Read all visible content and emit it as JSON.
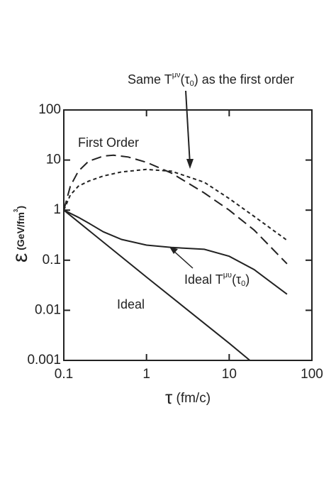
{
  "chart_data": {
    "type": "line",
    "xscale": "log",
    "yscale": "log",
    "xlim": [
      0.1,
      100
    ],
    "ylim": [
      0.001,
      100
    ],
    "xticks": [
      0.1,
      1,
      10,
      100
    ],
    "yticks": [
      0.001,
      0.01,
      0.1,
      1,
      10,
      100
    ],
    "xlabel": [
      {
        "text": "τ"
      },
      {
        "text": " (fm/c)"
      }
    ],
    "ylabel": [
      {
        "text": "ε"
      },
      {
        "text": " (GeV/fm"
      },
      {
        "text": "3",
        "script": "super"
      },
      {
        "text": ")"
      }
    ],
    "series": [
      {
        "color": "#222",
        "linestyle": "solid",
        "x": [
          0.1,
          1,
          10,
          17.8
        ],
        "values": [
          1,
          0.046,
          0.0022,
          0.001
        ]
      },
      {
        "color": "#222",
        "linestyle": "solid",
        "x": [
          0.1,
          0.15,
          0.2,
          0.3,
          0.5,
          1,
          2,
          5,
          10,
          20,
          50
        ],
        "values": [
          1,
          0.72,
          0.55,
          0.37,
          0.26,
          0.2,
          0.18,
          0.165,
          0.12,
          0.065,
          0.021
        ]
      },
      {
        "color": "#222",
        "linestyle": "long-dash",
        "x": [
          0.1,
          0.12,
          0.15,
          0.2,
          0.3,
          0.4,
          0.6,
          1,
          2,
          5,
          10,
          20,
          50
        ],
        "values": [
          1,
          3,
          6,
          9.5,
          12,
          12.5,
          11.5,
          9,
          5.5,
          2.2,
          1,
          0.4,
          0.085
        ]
      },
      {
        "color": "#222",
        "linestyle": "short-dash",
        "x": [
          0.1,
          0.12,
          0.15,
          0.2,
          0.3,
          0.5,
          1,
          2,
          5,
          10,
          20,
          50
        ],
        "values": [
          1,
          2,
          3,
          3.8,
          4.8,
          5.8,
          6.5,
          6,
          3.6,
          1.7,
          0.75,
          0.25
        ]
      }
    ],
    "annotations": [
      {
        "parts": [
          {
            "text": "Same T"
          },
          {
            "text": "μν",
            "script": "super"
          },
          {
            "text": "(τ"
          },
          {
            "text": "0",
            "script": "sub"
          },
          {
            "text": ") as the first order"
          }
        ]
      },
      {
        "parts": [
          {
            "text": "First Order"
          }
        ]
      },
      {
        "parts": [
          {
            "text": "Ideal T"
          },
          {
            "text": "μυ",
            "script": "super"
          },
          {
            "text": "(τ"
          },
          {
            "text": "0",
            "script": "sub"
          },
          {
            "text": ")"
          }
        ]
      },
      {
        "parts": [
          {
            "text": "Ideal"
          }
        ]
      }
    ]
  }
}
